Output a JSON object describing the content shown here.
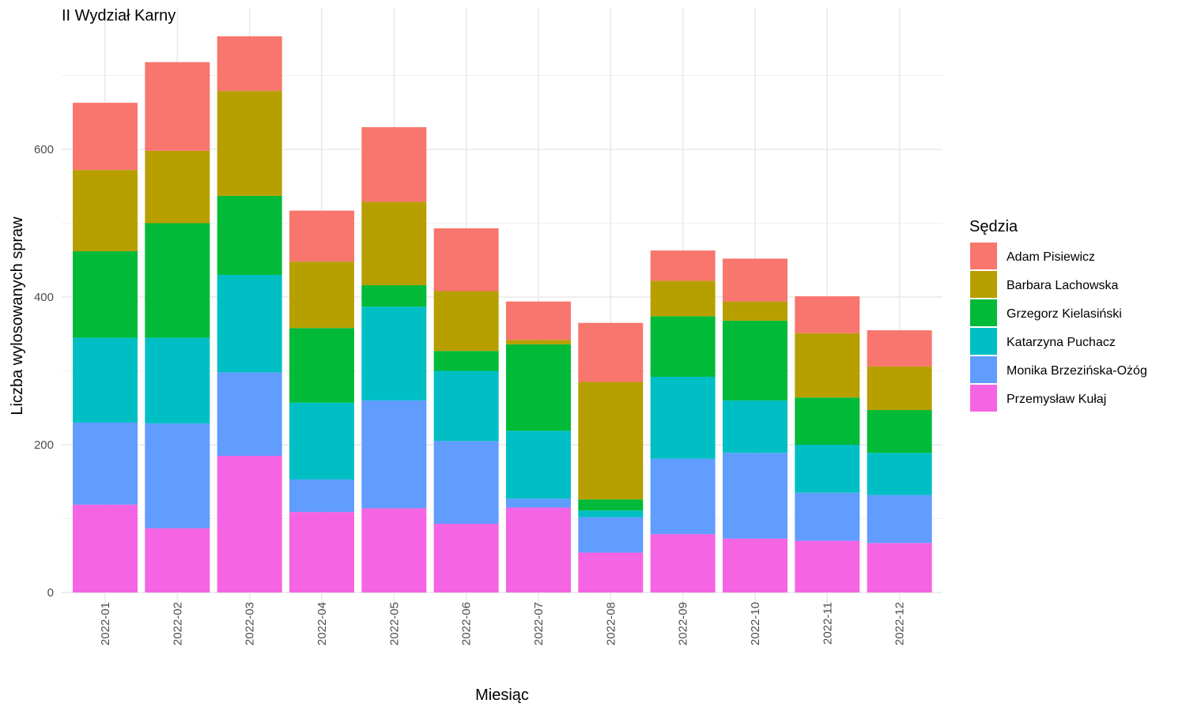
{
  "chart_data": {
    "type": "bar",
    "stacked": true,
    "title": "II Wydział Karny",
    "xlabel": "Miesiąc",
    "ylabel": "Liczba wylosowanych spraw",
    "ylim": [
      0,
      760
    ],
    "yticks": [
      0,
      200,
      400,
      600
    ],
    "grid": true,
    "legend": {
      "title": "Sędzia",
      "position": "right"
    },
    "categories": [
      "2022-01",
      "2022-02",
      "2022-03",
      "2022-04",
      "2022-05",
      "2022-06",
      "2022-07",
      "2022-08",
      "2022-09",
      "2022-10",
      "2022-11",
      "2022-12"
    ],
    "series": [
      {
        "name": "Przemysław Kułaj",
        "color": "#F564E3",
        "values": [
          119,
          87,
          185,
          109,
          114,
          93,
          115,
          54,
          79,
          73,
          70,
          67
        ]
      },
      {
        "name": "Monika Brzezińska-Ożóg",
        "color": "#619CFF",
        "values": [
          111,
          142,
          113,
          44,
          146,
          112,
          12,
          48,
          102,
          116,
          65,
          65
        ]
      },
      {
        "name": "Katarzyna Puchacz",
        "color": "#00BFC4",
        "values": [
          115,
          116,
          132,
          104,
          127,
          95,
          92,
          9,
          111,
          71,
          65,
          57
        ]
      },
      {
        "name": "Grzegorz Kielasiński",
        "color": "#00BA38",
        "values": [
          117,
          155,
          107,
          101,
          29,
          27,
          117,
          15,
          82,
          108,
          64,
          58
        ]
      },
      {
        "name": "Barbara Lachowska",
        "color": "#B79F00",
        "values": [
          110,
          98,
          142,
          90,
          113,
          81,
          6,
          159,
          48,
          26,
          87,
          59
        ]
      },
      {
        "name": "Adam Pisiewicz",
        "color": "#F8766D",
        "values": [
          91,
          120,
          74,
          69,
          101,
          85,
          52,
          80,
          41,
          58,
          50,
          49
        ]
      }
    ],
    "legend_order": [
      "Adam Pisiewicz",
      "Barbara Lachowska",
      "Grzegorz Kielasiński",
      "Katarzyna Puchacz",
      "Monika Brzezińska-Ożóg",
      "Przemysław Kułaj"
    ]
  }
}
